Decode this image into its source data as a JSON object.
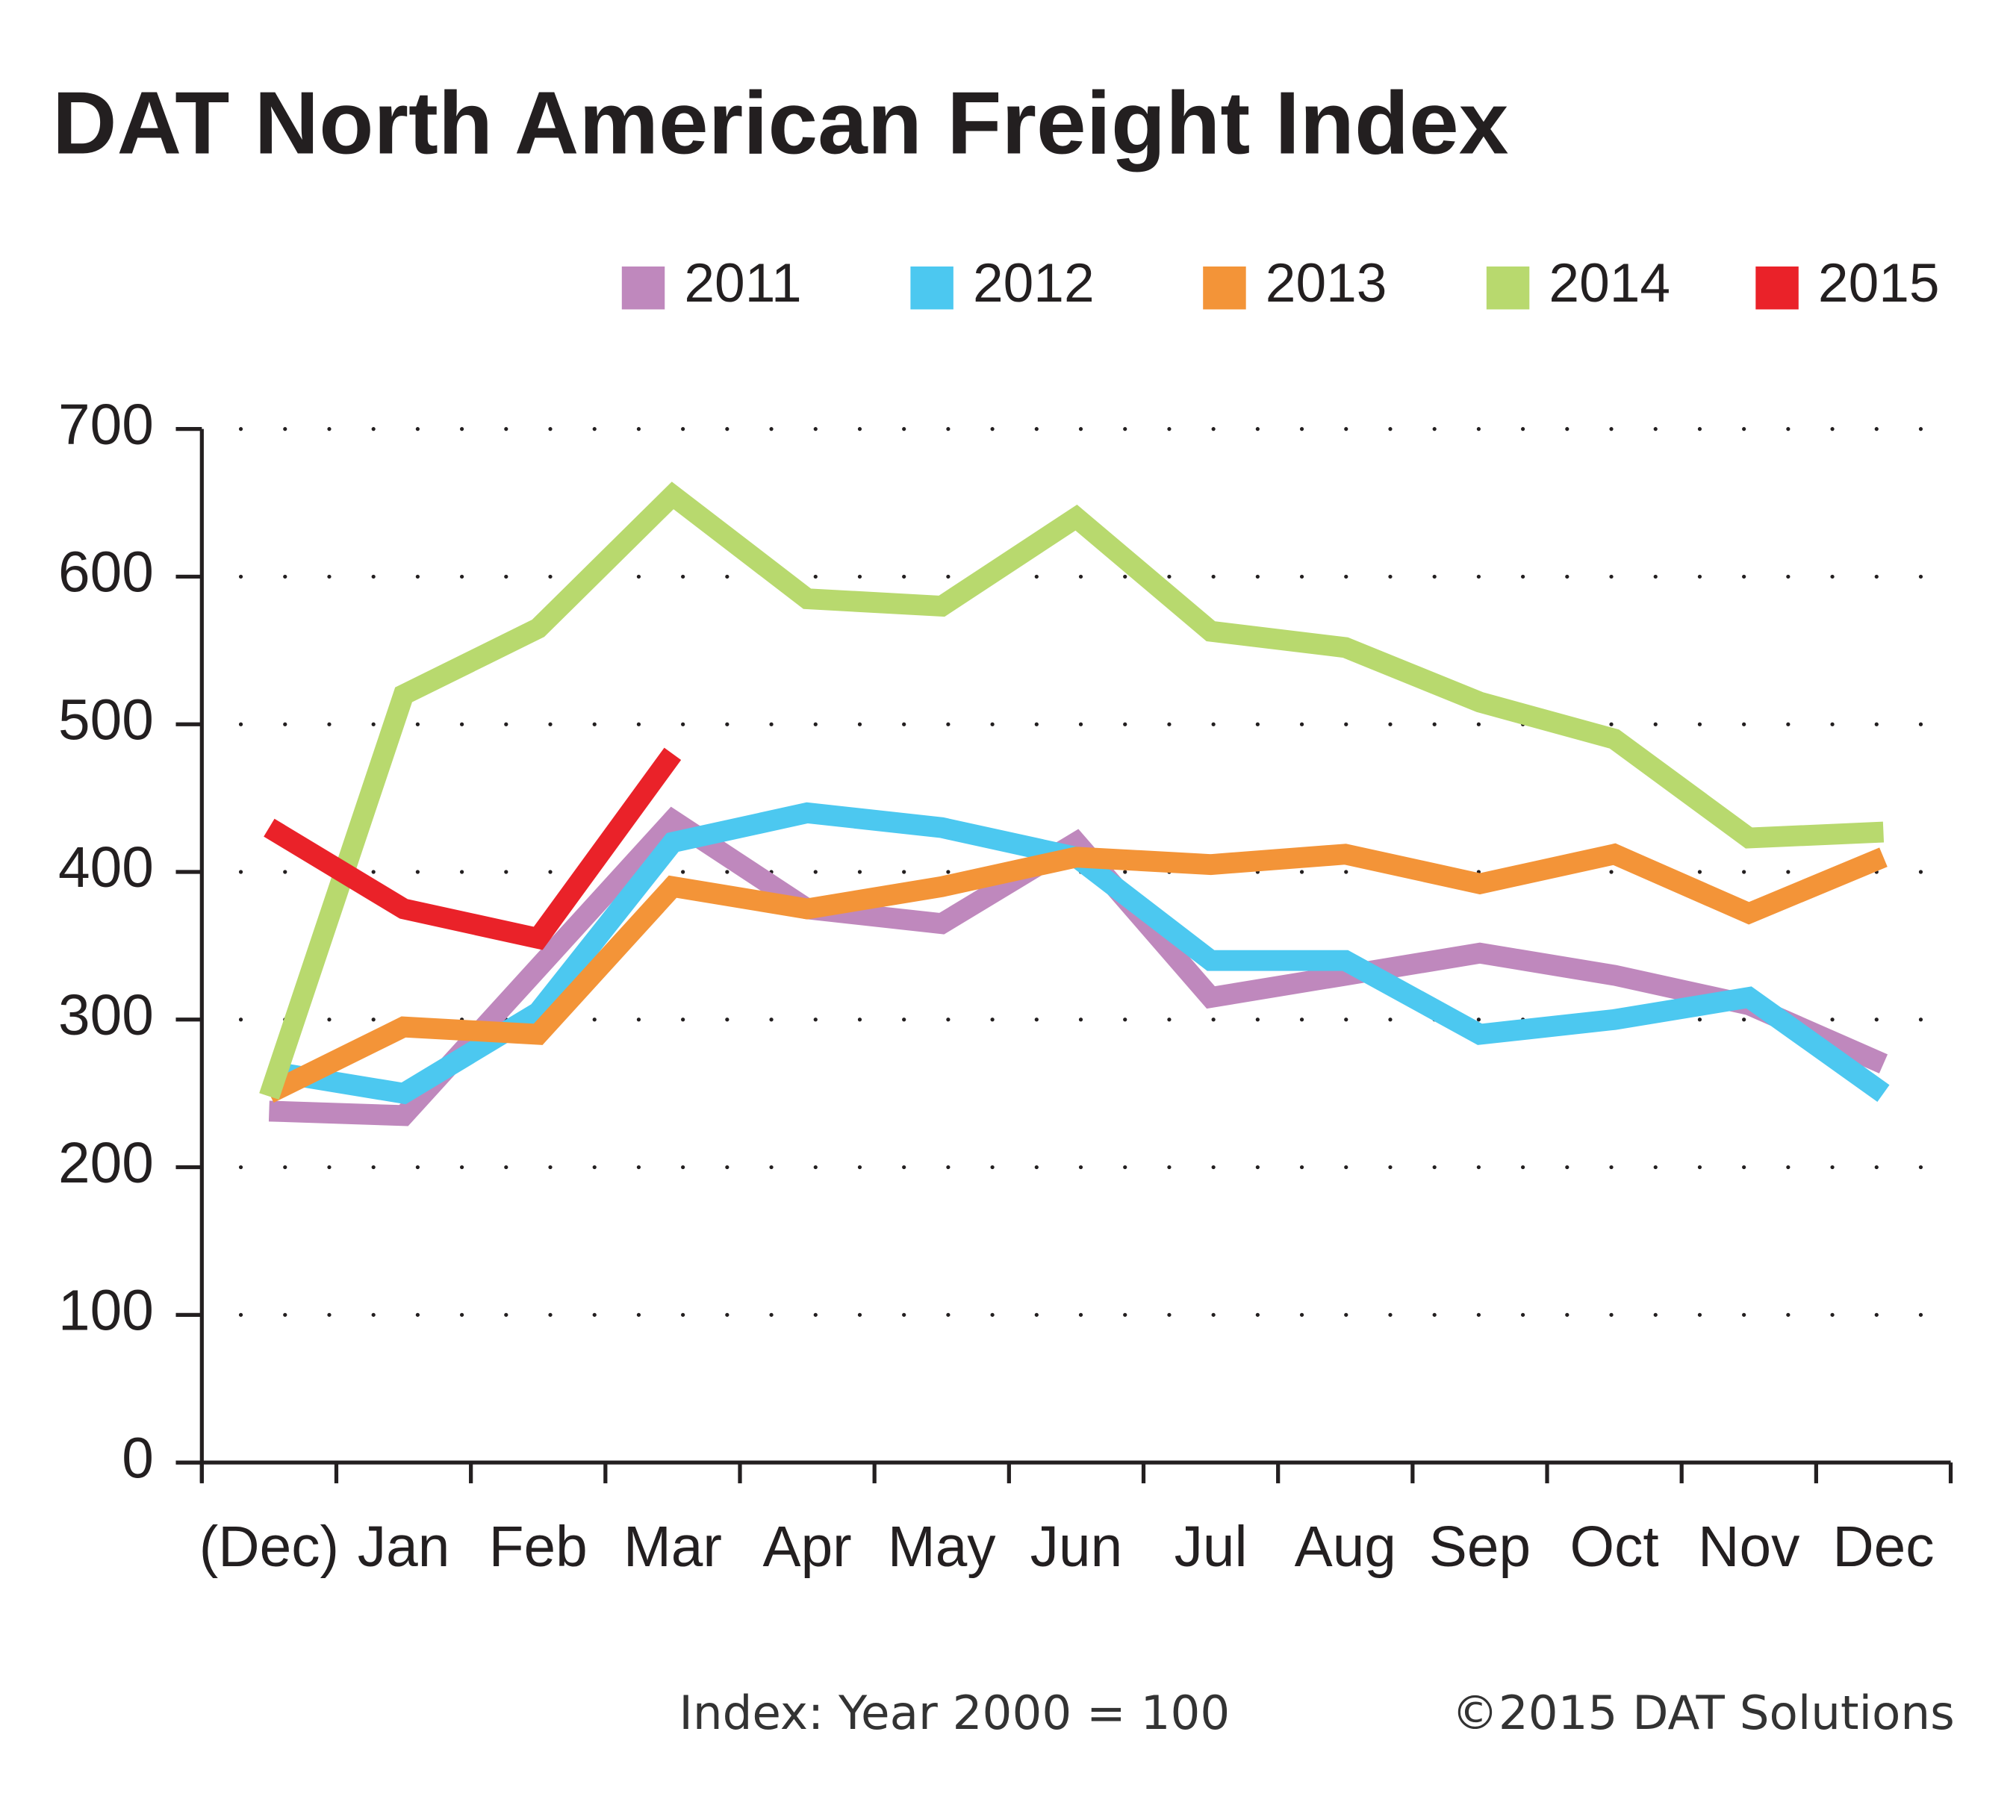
{
  "chart_data": {
    "type": "line",
    "title": "DAT North American Freight Index",
    "categories": [
      "(Dec)",
      "Jan",
      "Feb",
      "Mar",
      "Apr",
      "May",
      "Jun",
      "Jul",
      "Aug",
      "Sep",
      "Oct",
      "Nov",
      "Dec"
    ],
    "series": [
      {
        "name": "2011",
        "color": "#bf88bd",
        "values": [
          238,
          235,
          335,
          435,
          375,
          365,
          420,
          315,
          330,
          345,
          330,
          310,
          270
        ]
      },
      {
        "name": "2012",
        "color": "#4cc8f0",
        "values": [
          265,
          250,
          305,
          420,
          440,
          430,
          410,
          340,
          340,
          290,
          300,
          315,
          250
        ]
      },
      {
        "name": "2013",
        "color": "#f39438",
        "values": [
          250,
          295,
          290,
          390,
          375,
          390,
          410,
          405,
          412,
          392,
          412,
          372,
          410
        ]
      },
      {
        "name": "2014",
        "color": "#b8d96e",
        "values": [
          248,
          520,
          565,
          655,
          585,
          580,
          640,
          563,
          552,
          515,
          490,
          423,
          427
        ]
      },
      {
        "name": "2015",
        "color": "#ea2229",
        "values": [
          430,
          375,
          355,
          480,
          null,
          null,
          null,
          null,
          null,
          null,
          null,
          null,
          null
        ]
      }
    ],
    "ylim": [
      0,
      700
    ],
    "yticks": [
      0,
      100,
      200,
      300,
      400,
      500,
      600,
      700
    ],
    "grid": true,
    "notes": [
      "Index: Year 2000 = 100",
      "©2015 DAT Solutions"
    ]
  }
}
